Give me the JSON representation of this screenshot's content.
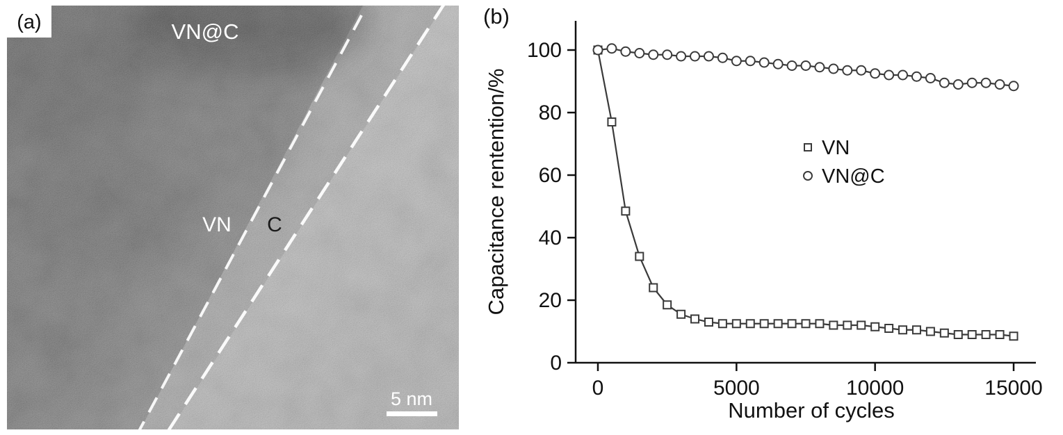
{
  "figure": {
    "panel_a": {
      "label": "(a)",
      "region_labels": {
        "composite": "VN@C",
        "core": "VN",
        "shell": "C"
      },
      "scale_bar_label": "5 nm"
    },
    "panel_b": {
      "label": "(b)"
    }
  },
  "chart_data": {
    "type": "line",
    "title": "",
    "xlabel": "Number of cycles",
    "ylabel": "Capacitance rentention/%",
    "xlim": [
      -700,
      15900
    ],
    "ylim": [
      0,
      110
    ],
    "x_ticks": [
      0,
      5000,
      10000,
      15000
    ],
    "y_ticks": [
      0,
      20,
      40,
      60,
      80,
      100
    ],
    "grid": false,
    "legend_position": "center-right",
    "x": [
      0,
      500,
      1000,
      1500,
      2000,
      2500,
      3000,
      3500,
      4000,
      4500,
      5000,
      5500,
      6000,
      6500,
      7000,
      7500,
      8000,
      8500,
      9000,
      9500,
      10000,
      10500,
      11000,
      11500,
      12000,
      12500,
      13000,
      13500,
      14000,
      14500,
      15000
    ],
    "series": [
      {
        "name": "VN",
        "marker": "square",
        "values": [
          100,
          77,
          48.5,
          34,
          24,
          18.5,
          15.5,
          14,
          13,
          12.5,
          12.5,
          12.5,
          12.5,
          12.5,
          12.5,
          12.5,
          12.5,
          12,
          12,
          12,
          11.5,
          11,
          10.5,
          10.5,
          10,
          9.5,
          9,
          9,
          9,
          9,
          8.5
        ]
      },
      {
        "name": "VN@C",
        "marker": "circle",
        "values": [
          100,
          100.5,
          99.5,
          99,
          98.5,
          98.5,
          98,
          98,
          98,
          97.5,
          96.5,
          96.5,
          96,
          95.5,
          95,
          95,
          94.5,
          94,
          93.5,
          93.5,
          92.5,
          92,
          92,
          91.5,
          91,
          89.5,
          89,
          89.5,
          89.5,
          89,
          88.5
        ]
      }
    ],
    "colors": {
      "line": "#3a3a3a",
      "marker_fill": "#ffffff",
      "axis": "#111111"
    }
  }
}
